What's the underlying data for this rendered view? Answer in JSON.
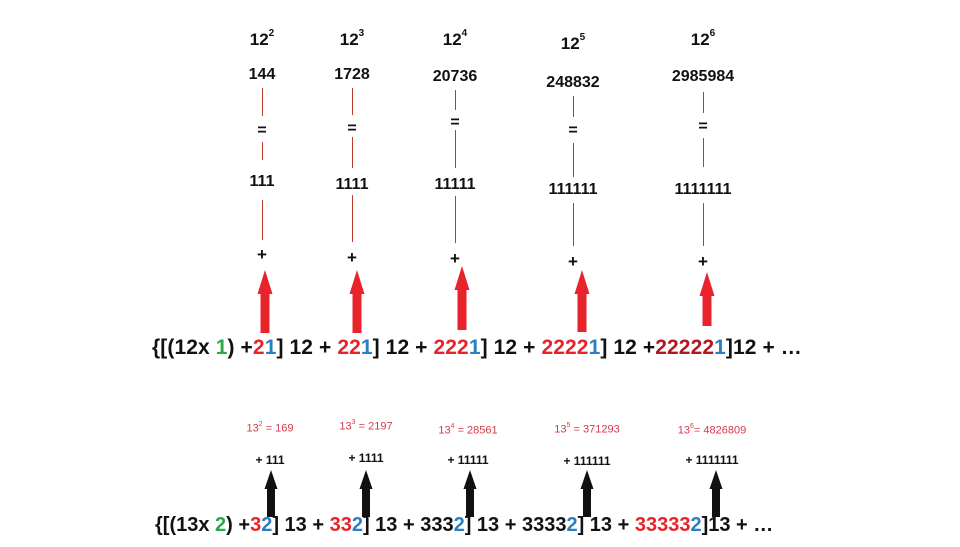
{
  "colors": {
    "red": "#e8232b",
    "blue": "#2a7fc4",
    "green": "#2aa84a",
    "dark_red": "#b3171f",
    "pink_red": "#d63a4a",
    "black": "#111111",
    "line": "#c0392b"
  },
  "top_columns": [
    {
      "base": "12",
      "exp": "2",
      "value": "144",
      "eq": "=",
      "ones": "111",
      "plus": "+"
    },
    {
      "base": "12",
      "exp": "3",
      "value": "1728",
      "eq": "=",
      "ones": "1111",
      "plus": "+"
    },
    {
      "base": "12",
      "exp": "4",
      "value": "20736",
      "eq": "=",
      "ones": "11111",
      "plus": "+"
    },
    {
      "base": "12",
      "exp": "5",
      "value": "248832",
      "eq": "=",
      "ones": "111111",
      "plus": "+"
    },
    {
      "base": "12",
      "exp": "6",
      "value": "2985984",
      "eq": "=",
      "ones": "1111111",
      "plus": "+"
    }
  ],
  "formula12": [
    {
      "t": "{[(12x ",
      "c": "black"
    },
    {
      "t": "1",
      "c": "green"
    },
    {
      "t": ") +",
      "c": "black"
    },
    {
      "t": "2",
      "c": "red"
    },
    {
      "t": "1",
      "c": "blue"
    },
    {
      "t": "] 12 + ",
      "c": "black"
    },
    {
      "t": "22",
      "c": "red"
    },
    {
      "t": "1",
      "c": "blue"
    },
    {
      "t": "] 12 + ",
      "c": "black"
    },
    {
      "t": "222",
      "c": "red"
    },
    {
      "t": "1",
      "c": "blue"
    },
    {
      "t": "] 12 + ",
      "c": "black"
    },
    {
      "t": "2222",
      "c": "red"
    },
    {
      "t": "1",
      "c": "blue"
    },
    {
      "t": "] 12 +",
      "c": "black"
    },
    {
      "t": "22222",
      "c": "dark_red"
    },
    {
      "t": "1",
      "c": "blue"
    },
    {
      "t": "]12 + …",
      "c": "black"
    }
  ],
  "bottom_columns": [
    {
      "base": "13",
      "exp": "2",
      "rest": " = 169",
      "ones": "+ 111"
    },
    {
      "base": "13",
      "exp": "3",
      "rest": " = 2197",
      "ones": "+ 1111"
    },
    {
      "base": "13",
      "exp": "4",
      "rest": " = 28561",
      "ones": "+ 11111"
    },
    {
      "base": "13",
      "exp": "5",
      "rest": " =  371293",
      "ones": "+ 111111"
    },
    {
      "base": "13",
      "exp": "6",
      "rest": "=    4826809",
      "ones": "+ 1111111"
    }
  ],
  "formula13": [
    {
      "t": "{[(13x ",
      "c": "black"
    },
    {
      "t": "2",
      "c": "green"
    },
    {
      "t": ") +",
      "c": "black"
    },
    {
      "t": "3",
      "c": "red"
    },
    {
      "t": "2",
      "c": "blue"
    },
    {
      "t": "] 13 + ",
      "c": "black"
    },
    {
      "t": "33",
      "c": "red"
    },
    {
      "t": "2",
      "c": "blue"
    },
    {
      "t": "] 13 + 333",
      "c": "black"
    },
    {
      "t": "2",
      "c": "blue"
    },
    {
      "t": "] 13 + 3333",
      "c": "black"
    },
    {
      "t": "2",
      "c": "blue"
    },
    {
      "t": "] 13 + ",
      "c": "black"
    },
    {
      "t": "33333",
      "c": "red"
    },
    {
      "t": "2",
      "c": "blue"
    },
    {
      "t": "]13 + …",
      "c": "black"
    }
  ]
}
